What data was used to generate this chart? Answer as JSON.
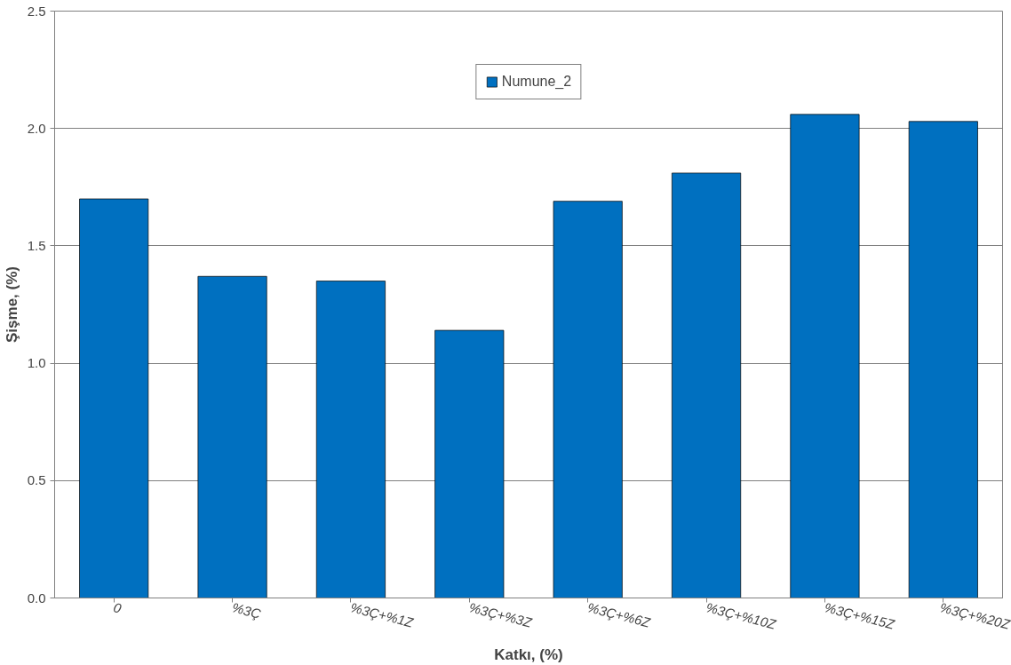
{
  "chart_data": {
    "type": "bar",
    "xlabel": "Katkı, (%)",
    "ylabel": "Şişme, (%)",
    "categories": [
      "0",
      "%3Ç",
      "%3Ç+%1Z",
      "%3Ç+%3Z",
      "%3Ç+%6Z",
      "%3Ç+%10Z",
      "%3Ç+%15Z",
      "%3Ç+%20Z"
    ],
    "series": [
      {
        "name": "Numune_2",
        "color": "#0070c0",
        "values": [
          1.7,
          1.37,
          1.35,
          1.14,
          1.69,
          1.81,
          2.06,
          2.03
        ]
      }
    ],
    "ylim": [
      0,
      2.5
    ],
    "yticks": [
      {
        "value": 0,
        "label": "0.0"
      },
      {
        "value": 0.5,
        "label": "0.5"
      },
      {
        "value": 1,
        "label": "1.0"
      },
      {
        "value": 1.5,
        "label": "1.5"
      },
      {
        "value": 2,
        "label": "2.0"
      },
      {
        "value": 2.5,
        "label": "2.5"
      }
    ],
    "grid": "y",
    "legend": "top"
  }
}
